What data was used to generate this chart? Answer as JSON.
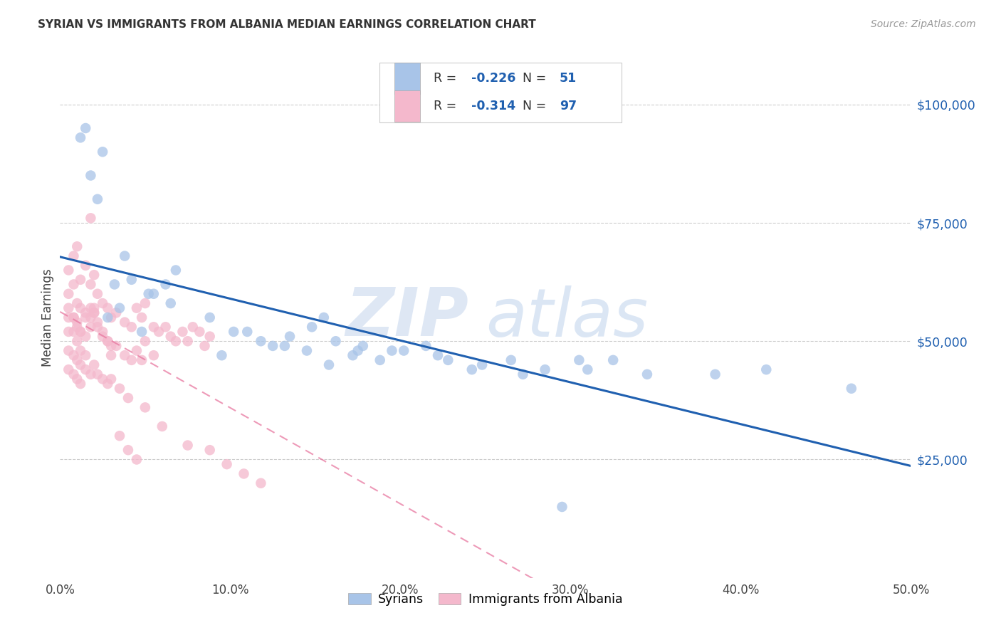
{
  "title": "SYRIAN VS IMMIGRANTS FROM ALBANIA MEDIAN EARNINGS CORRELATION CHART",
  "source": "Source: ZipAtlas.com",
  "ylabel": "Median Earnings",
  "watermark_zip": "ZIP",
  "watermark_atlas": "atlas",
  "syrians_R": -0.226,
  "syrians_N": 51,
  "albania_R": -0.314,
  "albania_N": 97,
  "xlim": [
    0.0,
    0.5
  ],
  "ylim": [
    0,
    110000
  ],
  "yticks": [
    0,
    25000,
    50000,
    75000,
    100000
  ],
  "ytick_labels": [
    "",
    "$25,000",
    "$50,000",
    "$75,000",
    "$100,000"
  ],
  "xtick_labels": [
    "0.0%",
    "10.0%",
    "20.0%",
    "30.0%",
    "40.0%",
    "50.0%"
  ],
  "xticks": [
    0.0,
    0.1,
    0.2,
    0.3,
    0.4,
    0.5
  ],
  "syrians_color": "#a8c4e8",
  "albania_color": "#f4b8cc",
  "syrians_line_color": "#2060b0",
  "albania_line_color": "#e878a0",
  "legend_syrians_label": "Syrians",
  "legend_albania_label": "Immigrants from Albania",
  "syrians_x": [
    0.018,
    0.025,
    0.022,
    0.068,
    0.032,
    0.038,
    0.055,
    0.042,
    0.028,
    0.035,
    0.048,
    0.062,
    0.095,
    0.11,
    0.125,
    0.135,
    0.148,
    0.162,
    0.178,
    0.155,
    0.172,
    0.188,
    0.202,
    0.215,
    0.228,
    0.242,
    0.265,
    0.285,
    0.305,
    0.325,
    0.345,
    0.385,
    0.415,
    0.465,
    0.015,
    0.012,
    0.052,
    0.065,
    0.088,
    0.102,
    0.118,
    0.132,
    0.145,
    0.158,
    0.175,
    0.195,
    0.222,
    0.248,
    0.272,
    0.31,
    0.295
  ],
  "syrians_y": [
    85000,
    90000,
    80000,
    65000,
    62000,
    68000,
    60000,
    63000,
    55000,
    57000,
    52000,
    62000,
    47000,
    52000,
    49000,
    51000,
    53000,
    50000,
    49000,
    55000,
    47000,
    46000,
    48000,
    49000,
    46000,
    44000,
    46000,
    44000,
    46000,
    46000,
    43000,
    43000,
    44000,
    40000,
    95000,
    93000,
    60000,
    58000,
    55000,
    52000,
    50000,
    49000,
    48000,
    45000,
    48000,
    48000,
    47000,
    45000,
    43000,
    44000,
    15000
  ],
  "albania_x": [
    0.005,
    0.008,
    0.01,
    0.012,
    0.015,
    0.018,
    0.02,
    0.022,
    0.025,
    0.028,
    0.03,
    0.033,
    0.038,
    0.042,
    0.045,
    0.048,
    0.05,
    0.055,
    0.058,
    0.062,
    0.065,
    0.068,
    0.072,
    0.075,
    0.078,
    0.082,
    0.085,
    0.088,
    0.005,
    0.008,
    0.01,
    0.012,
    0.015,
    0.018,
    0.02,
    0.022,
    0.025,
    0.028,
    0.03,
    0.033,
    0.038,
    0.042,
    0.045,
    0.048,
    0.05,
    0.055,
    0.005,
    0.008,
    0.01,
    0.012,
    0.015,
    0.018,
    0.02,
    0.022,
    0.025,
    0.028,
    0.03,
    0.005,
    0.008,
    0.01,
    0.012,
    0.015,
    0.018,
    0.02,
    0.005,
    0.008,
    0.01,
    0.012,
    0.015,
    0.018,
    0.005,
    0.008,
    0.01,
    0.012,
    0.015,
    0.018,
    0.02,
    0.022,
    0.025,
    0.028,
    0.005,
    0.008,
    0.01,
    0.012,
    0.03,
    0.035,
    0.04,
    0.05,
    0.06,
    0.075,
    0.088,
    0.098,
    0.108,
    0.118,
    0.035,
    0.04,
    0.045
  ],
  "albania_y": [
    65000,
    68000,
    70000,
    63000,
    66000,
    62000,
    64000,
    60000,
    58000,
    57000,
    55000,
    56000,
    54000,
    53000,
    57000,
    55000,
    58000,
    53000,
    52000,
    53000,
    51000,
    50000,
    52000,
    50000,
    53000,
    52000,
    49000,
    51000,
    52000,
    55000,
    54000,
    52000,
    55000,
    57000,
    56000,
    53000,
    51000,
    50000,
    47000,
    49000,
    47000,
    46000,
    48000,
    46000,
    50000,
    47000,
    60000,
    62000,
    58000,
    57000,
    56000,
    55000,
    57000,
    54000,
    52000,
    50000,
    49000,
    57000,
    55000,
    53000,
    52000,
    51000,
    53000,
    56000,
    55000,
    52000,
    50000,
    48000,
    47000,
    76000,
    48000,
    47000,
    46000,
    45000,
    44000,
    43000,
    45000,
    43000,
    42000,
    41000,
    44000,
    43000,
    42000,
    41000,
    42000,
    40000,
    38000,
    36000,
    32000,
    28000,
    27000,
    24000,
    22000,
    20000,
    30000,
    27000,
    25000
  ]
}
